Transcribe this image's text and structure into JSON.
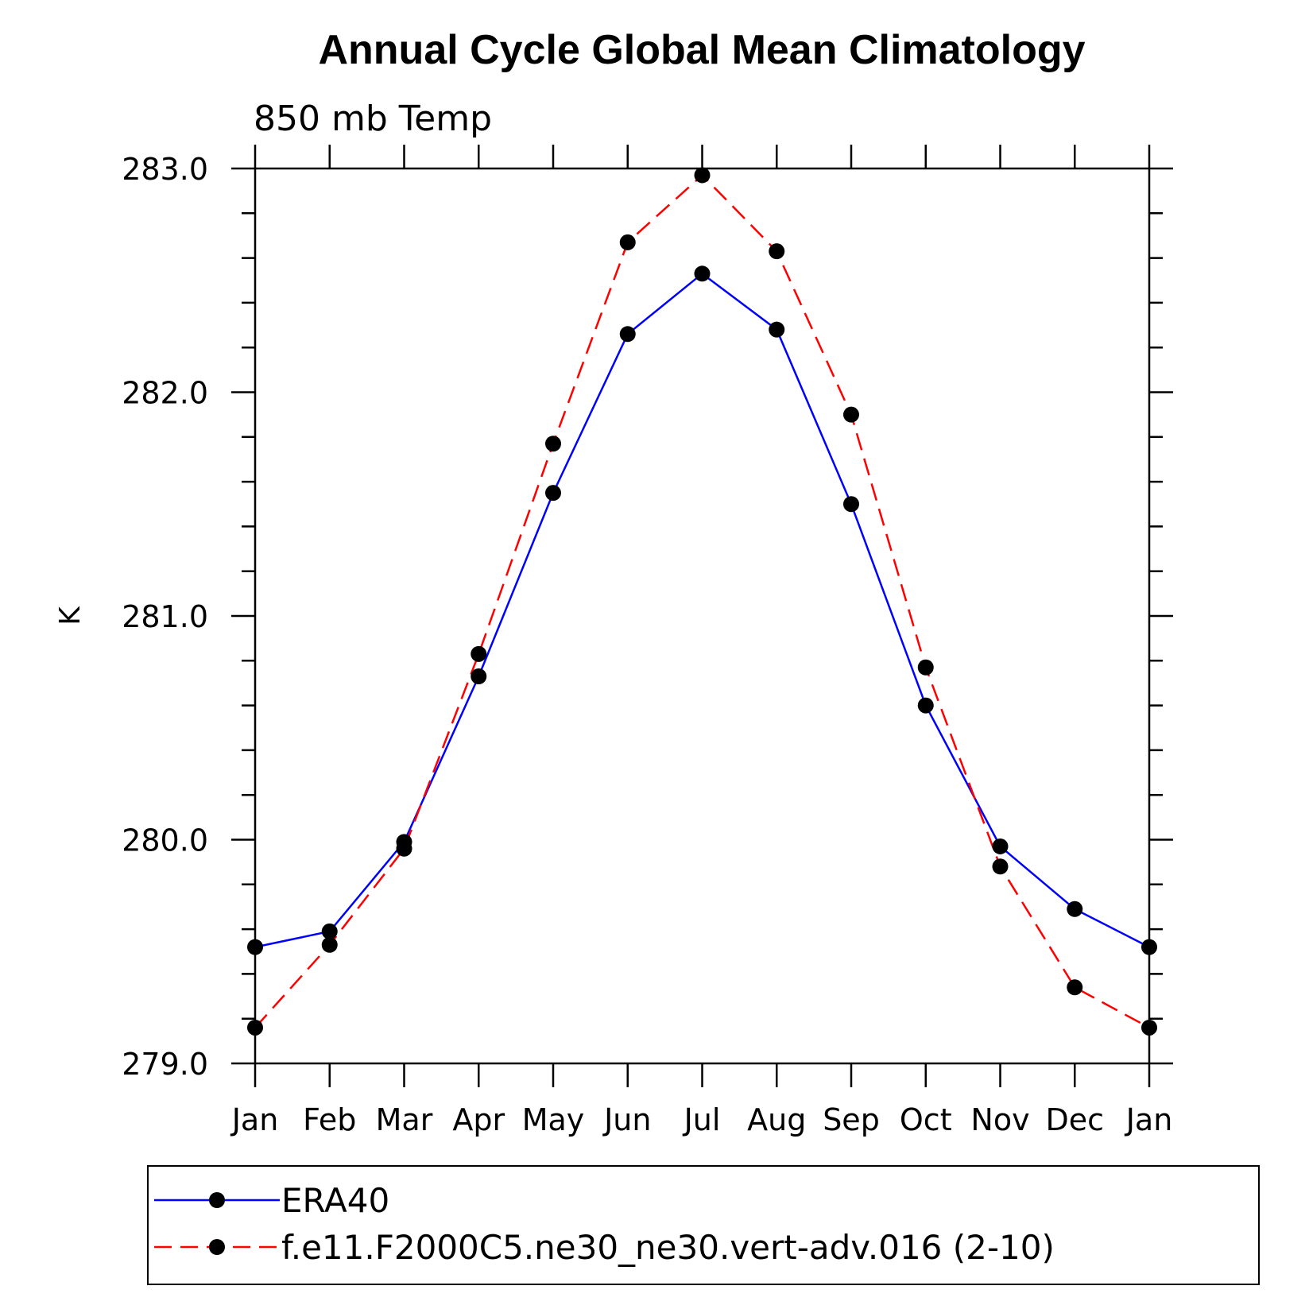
{
  "chart_data": {
    "type": "line",
    "title": "Annual Cycle Global Mean Climatology",
    "subtitle": "850 mb Temp",
    "xlabel": "",
    "ylabel": "K",
    "categories": [
      "Jan",
      "Feb",
      "Mar",
      "Apr",
      "May",
      "Jun",
      "Jul",
      "Aug",
      "Sep",
      "Oct",
      "Nov",
      "Dec",
      "Jan"
    ],
    "ylim": [
      279.0,
      283.0
    ],
    "yticks": [
      279.0,
      280.0,
      281.0,
      282.0,
      283.0
    ],
    "ytick_labels": [
      "279.0",
      "280.0",
      "281.0",
      "282.0",
      "283.0"
    ],
    "y_minor_step": 0.2,
    "grid": false,
    "legend_position": "bottom",
    "series": [
      {
        "name": "ERA40",
        "color": "#0000ff",
        "line_style": "solid",
        "marker": "filled-circle",
        "values": [
          279.52,
          279.59,
          279.99,
          280.73,
          281.55,
          282.26,
          282.53,
          282.28,
          281.5,
          280.6,
          279.97,
          279.69,
          279.52
        ]
      },
      {
        "name": "f.e11.F2000C5.ne30_ne30.vert-adv.016 (2-10)",
        "color": "#ff0000",
        "line_style": "dashed",
        "marker": "filled-circle",
        "values": [
          279.16,
          279.53,
          279.96,
          280.83,
          281.77,
          282.67,
          282.97,
          282.63,
          281.9,
          280.77,
          279.88,
          279.34,
          279.16
        ]
      }
    ]
  }
}
